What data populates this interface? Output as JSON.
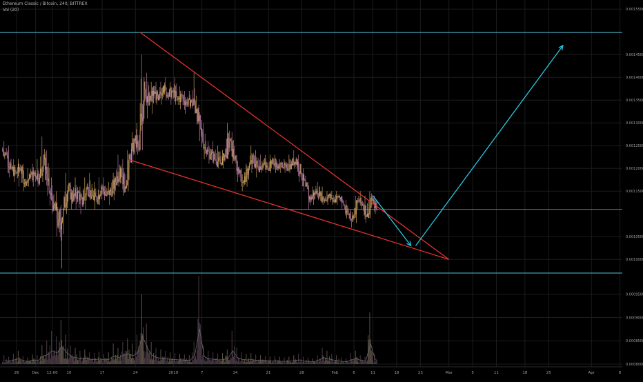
{
  "chart_data": {
    "type": "candlestick",
    "title": "Ethereum Classic / Bitcoin, 240, BITTREX",
    "subtitle": "Vol (20)",
    "ylim": [
      0.00097,
      0.00157
    ],
    "y_ticks": [
      {
        "v": 0.00155,
        "label": "0.00155000"
      },
      {
        "v": 0.00145,
        "label": "0.00145000"
      },
      {
        "v": 0.0014,
        "label": "0.00140000"
      },
      {
        "v": 0.00135,
        "label": "0.00135000"
      },
      {
        "v": 0.0013,
        "label": "0.00130000"
      },
      {
        "v": 0.00125,
        "label": "0.00125000"
      },
      {
        "v": 0.0012,
        "label": "0.00120000"
      },
      {
        "v": 0.00115,
        "label": "0.00115000"
      },
      {
        "v": 0.00105,
        "label": "0.00105000"
      },
      {
        "v": 0.001,
        "label": "0.00100000"
      }
    ],
    "volume_ticks": [
      {
        "v": 95000,
        "label": "0.00095000"
      },
      {
        "v": 63333,
        "label": "0.00090000"
      },
      {
        "v": 31667,
        "label": "0.00085000"
      },
      {
        "v": 0,
        "label": "0.00080000"
      }
    ],
    "volume_max": 120000,
    "x_ticks": [
      {
        "d": 26,
        "label": "26"
      },
      {
        "d": 30,
        "label": "Dec"
      },
      {
        "d": 33.5,
        "label": "12:00"
      },
      {
        "d": 37,
        "label": "10"
      },
      {
        "d": 44,
        "label": "17"
      },
      {
        "d": 51,
        "label": "24"
      },
      {
        "d": 59,
        "label": "2019"
      },
      {
        "d": 65,
        "label": "7"
      },
      {
        "d": 72,
        "label": "14"
      },
      {
        "d": 79,
        "label": "21"
      },
      {
        "d": 86,
        "label": "28"
      },
      {
        "d": 93,
        "label": "Feb"
      },
      {
        "d": 97,
        "label": "6"
      },
      {
        "d": 101,
        "label": "11"
      },
      {
        "d": 106,
        "label": "18"
      },
      {
        "d": 111,
        "label": "23"
      },
      {
        "d": 117,
        "label": "Mar"
      },
      {
        "d": 122,
        "label": "5"
      },
      {
        "d": 127,
        "label": "11"
      },
      {
        "d": 133,
        "label": "18"
      },
      {
        "d": 138,
        "label": "25"
      },
      {
        "d": 147,
        "label": "Apr"
      },
      {
        "d": 153,
        "label": "8"
      }
    ],
    "candles_daily": [
      {
        "d": 23,
        "o": 0.00124,
        "h": 0.00126,
        "l": 0.00122,
        "c": 0.00123
      },
      {
        "d": 24,
        "o": 0.00123,
        "h": 0.00125,
        "l": 0.00118,
        "c": 0.0012
      },
      {
        "d": 25,
        "o": 0.0012,
        "h": 0.00122,
        "l": 0.00117,
        "c": 0.00119
      },
      {
        "d": 26,
        "o": 0.00119,
        "h": 0.00122,
        "l": 0.00116,
        "c": 0.0012
      },
      {
        "d": 27,
        "o": 0.0012,
        "h": 0.00121,
        "l": 0.00115,
        "c": 0.00117
      },
      {
        "d": 28,
        "o": 0.00117,
        "h": 0.0012,
        "l": 0.00116,
        "c": 0.00118
      },
      {
        "d": 29,
        "o": 0.00118,
        "h": 0.00121,
        "l": 0.00116,
        "c": 0.00119
      },
      {
        "d": 30,
        "o": 0.00119,
        "h": 0.00122,
        "l": 0.00116,
        "c": 0.00118
      },
      {
        "d": 31,
        "o": 0.00118,
        "h": 0.00127,
        "l": 0.00117,
        "c": 0.00123
      },
      {
        "d": 32,
        "o": 0.00123,
        "h": 0.00124,
        "l": 0.00114,
        "c": 0.00115
      },
      {
        "d": 33,
        "o": 0.00115,
        "h": 0.00118,
        "l": 0.0011,
        "c": 0.00112
      },
      {
        "d": 34,
        "o": 0.00112,
        "h": 0.00115,
        "l": 0.00105,
        "c": 0.00108
      },
      {
        "d": 35,
        "o": 0.00108,
        "h": 0.00112,
        "l": 0.00098,
        "c": 0.00111
      },
      {
        "d": 36,
        "o": 0.00111,
        "h": 0.00119,
        "l": 0.0011,
        "c": 0.00116
      },
      {
        "d": 37,
        "o": 0.00116,
        "h": 0.00117,
        "l": 0.00111,
        "c": 0.00113
      },
      {
        "d": 38,
        "o": 0.00113,
        "h": 0.00118,
        "l": 0.00111,
        "c": 0.00115
      },
      {
        "d": 39,
        "o": 0.00115,
        "h": 0.00116,
        "l": 0.0011,
        "c": 0.00112
      },
      {
        "d": 40,
        "o": 0.00112,
        "h": 0.00118,
        "l": 0.00111,
        "c": 0.00116
      },
      {
        "d": 41,
        "o": 0.00116,
        "h": 0.00119,
        "l": 0.00113,
        "c": 0.00114
      },
      {
        "d": 42,
        "o": 0.00114,
        "h": 0.00117,
        "l": 0.00111,
        "c": 0.00113
      },
      {
        "d": 43,
        "o": 0.00113,
        "h": 0.00118,
        "l": 0.00112,
        "c": 0.00116
      },
      {
        "d": 44,
        "o": 0.00116,
        "h": 0.00118,
        "l": 0.00113,
        "c": 0.00114
      },
      {
        "d": 45,
        "o": 0.00114,
        "h": 0.00117,
        "l": 0.00112,
        "c": 0.00115
      },
      {
        "d": 46,
        "o": 0.00115,
        "h": 0.00119,
        "l": 0.00113,
        "c": 0.00117
      },
      {
        "d": 47,
        "o": 0.00117,
        "h": 0.00123,
        "l": 0.00116,
        "c": 0.0012
      },
      {
        "d": 48,
        "o": 0.0012,
        "h": 0.00122,
        "l": 0.00114,
        "c": 0.00116
      },
      {
        "d": 49,
        "o": 0.00116,
        "h": 0.00124,
        "l": 0.00115,
        "c": 0.00122
      },
      {
        "d": 50,
        "o": 0.00122,
        "h": 0.00128,
        "l": 0.00121,
        "c": 0.00126
      },
      {
        "d": 51,
        "o": 0.00126,
        "h": 0.0013,
        "l": 0.00123,
        "c": 0.00124
      },
      {
        "d": 52,
        "o": 0.00124,
        "h": 0.00145,
        "l": 0.00124,
        "c": 0.00139
      },
      {
        "d": 53,
        "o": 0.00139,
        "h": 0.00141,
        "l": 0.00131,
        "c": 0.00134
      },
      {
        "d": 54,
        "o": 0.00134,
        "h": 0.00139,
        "l": 0.00132,
        "c": 0.00137
      },
      {
        "d": 55,
        "o": 0.00137,
        "h": 0.00139,
        "l": 0.00134,
        "c": 0.00135
      },
      {
        "d": 56,
        "o": 0.00135,
        "h": 0.00139,
        "l": 0.00134,
        "c": 0.00138
      },
      {
        "d": 57,
        "o": 0.00138,
        "h": 0.0014,
        "l": 0.00135,
        "c": 0.00136
      },
      {
        "d": 58,
        "o": 0.00136,
        "h": 0.00139,
        "l": 0.00134,
        "c": 0.00137
      },
      {
        "d": 59,
        "o": 0.00137,
        "h": 0.0014,
        "l": 0.00134,
        "c": 0.00135
      },
      {
        "d": 60,
        "o": 0.00135,
        "h": 0.00138,
        "l": 0.00133,
        "c": 0.00136
      },
      {
        "d": 61,
        "o": 0.00136,
        "h": 0.00137,
        "l": 0.00132,
        "c": 0.00134
      },
      {
        "d": 62,
        "o": 0.00134,
        "h": 0.00137,
        "l": 0.00133,
        "c": 0.00135
      },
      {
        "d": 63,
        "o": 0.00135,
        "h": 0.00141,
        "l": 0.00132,
        "c": 0.00133
      },
      {
        "d": 64,
        "o": 0.00133,
        "h": 0.00134,
        "l": 0.00126,
        "c": 0.00128
      },
      {
        "d": 65,
        "o": 0.00128,
        "h": 0.0013,
        "l": 0.00122,
        "c": 0.00124
      },
      {
        "d": 66,
        "o": 0.00124,
        "h": 0.00126,
        "l": 0.00121,
        "c": 0.00123
      },
      {
        "d": 67,
        "o": 0.00123,
        "h": 0.00126,
        "l": 0.00121,
        "c": 0.00122
      },
      {
        "d": 68,
        "o": 0.00122,
        "h": 0.00125,
        "l": 0.0012,
        "c": 0.00121
      },
      {
        "d": 69,
        "o": 0.00121,
        "h": 0.00124,
        "l": 0.0012,
        "c": 0.00123
      },
      {
        "d": 70,
        "o": 0.00123,
        "h": 0.0013,
        "l": 0.00122,
        "c": 0.00126
      },
      {
        "d": 71,
        "o": 0.00126,
        "h": 0.00128,
        "l": 0.00121,
        "c": 0.00122
      },
      {
        "d": 72,
        "o": 0.00122,
        "h": 0.00123,
        "l": 0.00117,
        "c": 0.00119
      },
      {
        "d": 73,
        "o": 0.00119,
        "h": 0.0012,
        "l": 0.00115,
        "c": 0.00117
      },
      {
        "d": 74,
        "o": 0.00117,
        "h": 0.00121,
        "l": 0.00116,
        "c": 0.0012
      },
      {
        "d": 75,
        "o": 0.0012,
        "h": 0.00125,
        "l": 0.00119,
        "c": 0.00122
      },
      {
        "d": 76,
        "o": 0.00122,
        "h": 0.00124,
        "l": 0.00118,
        "c": 0.0012
      },
      {
        "d": 77,
        "o": 0.0012,
        "h": 0.00123,
        "l": 0.00119,
        "c": 0.00121
      },
      {
        "d": 78,
        "o": 0.00121,
        "h": 0.00123,
        "l": 0.00119,
        "c": 0.0012
      },
      {
        "d": 79,
        "o": 0.0012,
        "h": 0.00123,
        "l": 0.00119,
        "c": 0.00122
      },
      {
        "d": 80,
        "o": 0.00122,
        "h": 0.00123,
        "l": 0.00119,
        "c": 0.0012
      },
      {
        "d": 81,
        "o": 0.0012,
        "h": 0.00122,
        "l": 0.00119,
        "c": 0.00121
      },
      {
        "d": 82,
        "o": 0.00121,
        "h": 0.00122,
        "l": 0.00119,
        "c": 0.0012
      },
      {
        "d": 83,
        "o": 0.0012,
        "h": 0.00123,
        "l": 0.00119,
        "c": 0.00121
      },
      {
        "d": 84,
        "o": 0.00121,
        "h": 0.00124,
        "l": 0.0012,
        "c": 0.00122
      },
      {
        "d": 85,
        "o": 0.00122,
        "h": 0.00123,
        "l": 0.00117,
        "c": 0.00119
      },
      {
        "d": 86,
        "o": 0.00119,
        "h": 0.0012,
        "l": 0.00115,
        "c": 0.00116
      },
      {
        "d": 87,
        "o": 0.00116,
        "h": 0.00117,
        "l": 0.00111,
        "c": 0.00113
      },
      {
        "d": 88,
        "o": 0.00113,
        "h": 0.00116,
        "l": 0.00112,
        "c": 0.00115
      },
      {
        "d": 89,
        "o": 0.00115,
        "h": 0.00117,
        "l": 0.00113,
        "c": 0.00114
      },
      {
        "d": 90,
        "o": 0.00114,
        "h": 0.00116,
        "l": 0.00112,
        "c": 0.00113
      },
      {
        "d": 91,
        "o": 0.00113,
        "h": 0.00115,
        "l": 0.00112,
        "c": 0.00114
      },
      {
        "d": 92,
        "o": 0.00114,
        "h": 0.00115,
        "l": 0.00112,
        "c": 0.00113
      },
      {
        "d": 93,
        "o": 0.00113,
        "h": 0.00115,
        "l": 0.00112,
        "c": 0.00114
      },
      {
        "d": 94,
        "o": 0.00114,
        "h": 0.00114,
        "l": 0.00111,
        "c": 0.00112
      },
      {
        "d": 95,
        "o": 0.00112,
        "h": 0.00113,
        "l": 0.00109,
        "c": 0.0011
      },
      {
        "d": 96,
        "o": 0.0011,
        "h": 0.00111,
        "l": 0.00107,
        "c": 0.00109
      },
      {
        "d": 97,
        "o": 0.00109,
        "h": 0.00114,
        "l": 0.00108,
        "c": 0.00113
      },
      {
        "d": 98,
        "o": 0.00113,
        "h": 0.00115,
        "l": 0.00111,
        "c": 0.00112
      },
      {
        "d": 99,
        "o": 0.00112,
        "h": 0.00114,
        "l": 0.00108,
        "c": 0.0011
      },
      {
        "d": 100,
        "o": 0.0011,
        "h": 0.00115,
        "l": 0.00109,
        "c": 0.00113
      },
      {
        "d": 101,
        "o": 0.00113,
        "h": 0.00114,
        "l": 0.0011,
        "c": 0.00111
      }
    ],
    "volume_daily": [
      12000,
      10000,
      14000,
      18000,
      11000,
      9000,
      13000,
      12000,
      26000,
      32000,
      45000,
      38000,
      60000,
      40000,
      25000,
      22000,
      18000,
      20000,
      16000,
      15000,
      17000,
      14000,
      16000,
      28000,
      22000,
      30000,
      35000,
      28000,
      40000,
      95000,
      55000,
      30000,
      22000,
      20000,
      18000,
      16000,
      15000,
      14000,
      13000,
      12000,
      30000,
      120000,
      25000,
      18000,
      16000,
      14000,
      15000,
      20000,
      45000,
      22000,
      16000,
      14000,
      15000,
      13000,
      12000,
      11000,
      10000,
      11000,
      10000,
      9000,
      10000,
      12000,
      14000,
      10000,
      9000,
      8000,
      12000,
      22000,
      18000,
      14000,
      12000,
      9000,
      8000,
      15000,
      18000,
      12000,
      10000,
      70000,
      14000
    ],
    "levels": [
      {
        "v": 0.00149861,
        "label": "0.00149861",
        "color": "#4fc3d8"
      },
      {
        "v": 0.00111,
        "label": "0.00111000",
        "color": "#d42bd8"
      },
      {
        "v": 0.00097,
        "label": "0.00097070",
        "color": "#4fc3d8"
      }
    ],
    "colors": {
      "up": "#c8a25a",
      "down": "#b0789a",
      "wedge": "#e4332f",
      "arrow": "#28c8e0",
      "grid": "#1c1c1c",
      "label": "#a0a0a0"
    },
    "wedge": {
      "upper": [
        {
          "d": 52,
          "v": 0.001499
        },
        {
          "d": 117,
          "v": 0.001
        }
      ],
      "lower": [
        {
          "d": 50,
          "v": 0.001218
        },
        {
          "d": 117,
          "v": 0.001
        }
      ]
    },
    "forecast_arrows": [
      {
        "from": {
          "d": 101,
          "v": 0.00114
        },
        "to": {
          "d": 109,
          "v": 0.00103
        }
      },
      {
        "from": {
          "d": 110,
          "v": 0.00103
        },
        "to": {
          "d": 141,
          "v": 0.00147
        }
      }
    ]
  }
}
